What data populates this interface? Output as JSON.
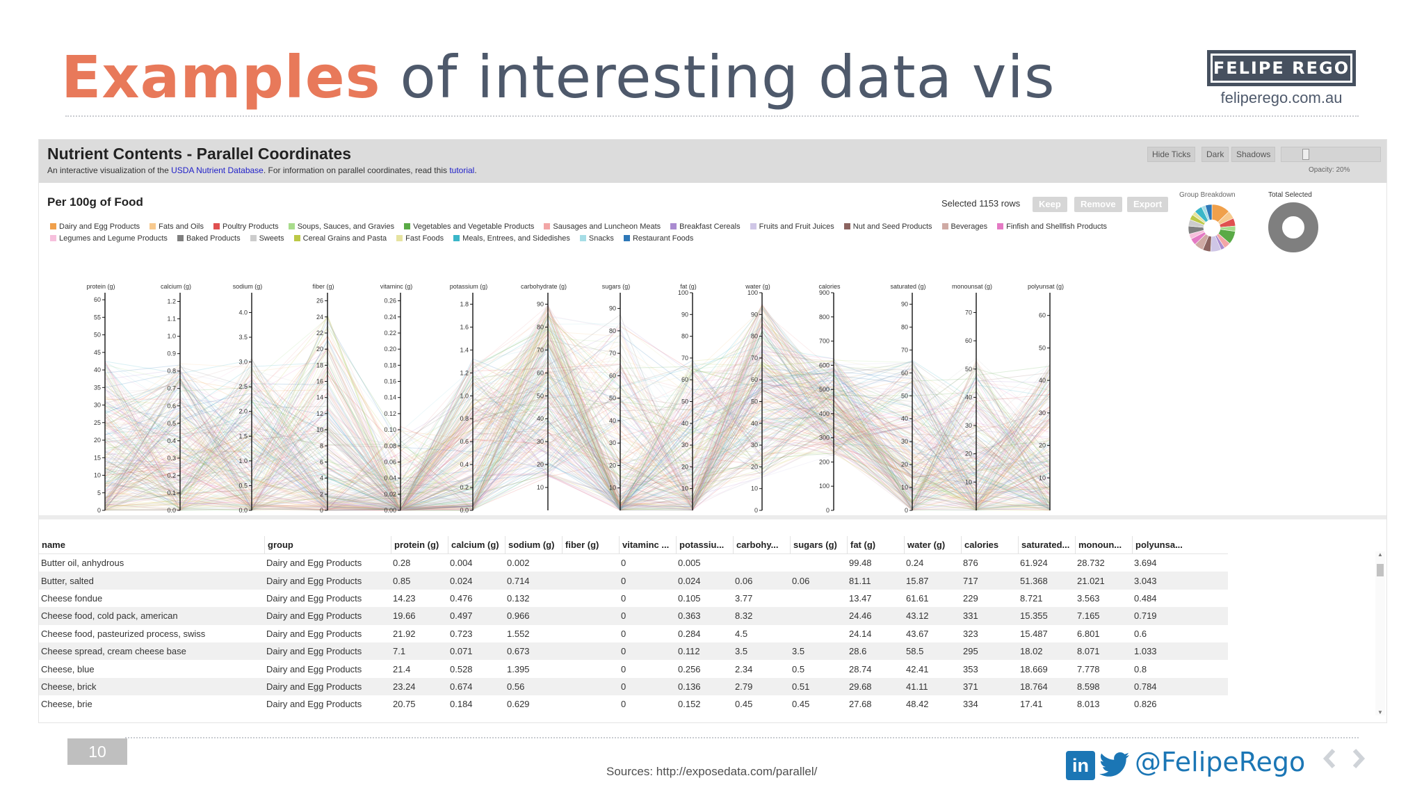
{
  "slide": {
    "title_accent": "Examples",
    "title_rest": " of interesting data vis",
    "brand": "FELIPE REGO",
    "brand_url": "feliperego.com.au",
    "page_number": "10",
    "sources": "Sources: http://exposedata.com/parallel/",
    "handle": "@FelipeRego",
    "linkedin_text": "in"
  },
  "app": {
    "title": "Nutrient Contents - Parallel Coordinates",
    "subtitle_pre": "An interactive visualization of the ",
    "subtitle_link1": "USDA Nutrient Database",
    "subtitle_mid": ". For information on parallel coordinates, read this ",
    "subtitle_link2": "tutorial",
    "subtitle_end": ".",
    "header_buttons": [
      "Hide Ticks",
      "Dark",
      "Shadows"
    ],
    "opacity_label": "Opacity: 20%",
    "opacity_value": 0.2,
    "per_title": "Per 100g of Food",
    "selected_text": "Selected 1153 rows",
    "actions": [
      "Keep",
      "Remove",
      "Export"
    ],
    "group_breakdown_label": "Group Breakdown",
    "total_selected_label": "Total Selected"
  },
  "legend": [
    {
      "label": "Dairy and Egg Products",
      "color": "#f0a04b"
    },
    {
      "label": "Fats and Oils",
      "color": "#f7c98e"
    },
    {
      "label": "Poultry Products",
      "color": "#e05050"
    },
    {
      "label": "Soups, Sauces, and Gravies",
      "color": "#a8dc8c"
    },
    {
      "label": "Vegetables and Vegetable Products",
      "color": "#5aaa46"
    },
    {
      "label": "Sausages and Luncheon Meats",
      "color": "#f2a6a6"
    },
    {
      "label": "Breakfast Cereals",
      "color": "#a98bd0"
    },
    {
      "label": "Fruits and Fruit Juices",
      "color": "#cfc6e6"
    },
    {
      "label": "Nut and Seed Products",
      "color": "#8c6460"
    },
    {
      "label": "Beverages",
      "color": "#cfaaa4"
    },
    {
      "label": "Finfish and Shellfish Products",
      "color": "#e47ac4"
    },
    {
      "label": "Legumes and Legume Products",
      "color": "#f6c0dc"
    },
    {
      "label": "Baked Products",
      "color": "#7f7f7f"
    },
    {
      "label": "Sweets",
      "color": "#cccccc"
    },
    {
      "label": "Cereal Grains and Pasta",
      "color": "#bcc846"
    },
    {
      "label": "Fast Foods",
      "color": "#e6e3a0"
    },
    {
      "label": "Meals, Entrees, and Sidedishes",
      "color": "#3ab6c8"
    },
    {
      "label": "Snacks",
      "color": "#a6dde6"
    },
    {
      "label": "Restaurant Foods",
      "color": "#2e78b8"
    }
  ],
  "chart_data": {
    "type": "parallel-coordinates",
    "axes": [
      {
        "name": "protein (g)",
        "min": 0,
        "max": 62,
        "ticks": [
          0,
          5,
          10,
          15,
          20,
          25,
          30,
          35,
          40,
          45,
          50,
          55,
          60
        ]
      },
      {
        "name": "calcium (g)",
        "min": 0,
        "max": 1.25,
        "ticks": [
          "0.0",
          "0.1",
          "0.2",
          "0.3",
          "0.4",
          "0.5",
          "0.6",
          "0.7",
          "0.8",
          "0.9",
          "1.0",
          "1.1",
          "1.2"
        ]
      },
      {
        "name": "sodium (g)",
        "min": 0,
        "max": 4.4,
        "ticks": [
          "0.0",
          "0.5",
          "1.0",
          "1.5",
          "2.0",
          "2.5",
          "3.0",
          "3.5",
          "4.0"
        ]
      },
      {
        "name": "fiber (g)",
        "min": 0,
        "max": 27,
        "ticks": [
          0,
          2,
          4,
          6,
          8,
          10,
          12,
          14,
          16,
          18,
          20,
          22,
          24,
          26
        ]
      },
      {
        "name": "vitaminc (g)",
        "min": 0,
        "max": 0.27,
        "ticks": [
          "0.00",
          "0.02",
          "0.04",
          "0.06",
          "0.08",
          "0.10",
          "0.12",
          "0.14",
          "0.16",
          "0.18",
          "0.20",
          "0.22",
          "0.24",
          "0.26"
        ]
      },
      {
        "name": "potassium (g)",
        "min": 0,
        "max": 1.9,
        "ticks": [
          "0.0",
          "0.2",
          "0.4",
          "0.6",
          "0.8",
          "1.0",
          "1.2",
          "1.4",
          "1.6",
          "1.8"
        ]
      },
      {
        "name": "carbohydrate (g)",
        "min": 0,
        "max": 95,
        "ticks": [
          10,
          20,
          30,
          40,
          50,
          60,
          70,
          80,
          90
        ]
      },
      {
        "name": "sugars (g)",
        "min": 0,
        "max": 97,
        "ticks": [
          10,
          20,
          30,
          40,
          50,
          60,
          70,
          80,
          90
        ]
      },
      {
        "name": "fat (g)",
        "min": 0,
        "max": 100,
        "ticks": [
          10,
          20,
          30,
          40,
          50,
          60,
          70,
          80,
          90,
          100
        ]
      },
      {
        "name": "water (g)",
        "min": 0,
        "max": 100,
        "ticks": [
          0,
          10,
          20,
          30,
          40,
          50,
          60,
          70,
          80,
          90,
          100
        ]
      },
      {
        "name": "calories",
        "min": 0,
        "max": 900,
        "ticks": [
          0,
          100,
          200,
          300,
          400,
          500,
          600,
          700,
          800,
          900
        ]
      },
      {
        "name": "saturated (g)",
        "min": 0,
        "max": 95,
        "ticks": [
          0,
          10,
          20,
          30,
          40,
          50,
          60,
          70,
          80,
          90
        ]
      },
      {
        "name": "monounsat (g)",
        "min": 0,
        "max": 77,
        "ticks": [
          10,
          20,
          30,
          40,
          50,
          60,
          70
        ]
      },
      {
        "name": "polyunsat (g)",
        "min": 0,
        "max": 67,
        "ticks": [
          10,
          20,
          30,
          40,
          50,
          60
        ]
      }
    ],
    "selected_rows": 1153,
    "opacity": 0.2
  },
  "table": {
    "columns": [
      "name",
      "group",
      "protein (g)",
      "calcium (g)",
      "sodium (g)",
      "fiber (g)",
      "vitaminc ...",
      "potassiu...",
      "carbohy...",
      "sugars (g)",
      "fat (g)",
      "water (g)",
      "calories",
      "saturated...",
      "monoun...",
      "polyunsa..."
    ],
    "rows": [
      [
        "Butter oil, anhydrous",
        "Dairy and Egg Products",
        "0.28",
        "0.004",
        "0.002",
        "",
        "0",
        "0.005",
        "",
        "",
        "99.48",
        "0.24",
        "876",
        "61.924",
        "28.732",
        "3.694"
      ],
      [
        "Butter, salted",
        "Dairy and Egg Products",
        "0.85",
        "0.024",
        "0.714",
        "",
        "0",
        "0.024",
        "0.06",
        "0.06",
        "81.11",
        "15.87",
        "717",
        "51.368",
        "21.021",
        "3.043"
      ],
      [
        "Cheese fondue",
        "Dairy and Egg Products",
        "14.23",
        "0.476",
        "0.132",
        "",
        "0",
        "0.105",
        "3.77",
        "",
        "13.47",
        "61.61",
        "229",
        "8.721",
        "3.563",
        "0.484"
      ],
      [
        "Cheese food, cold pack, american",
        "Dairy and Egg Products",
        "19.66",
        "0.497",
        "0.966",
        "",
        "0",
        "0.363",
        "8.32",
        "",
        "24.46",
        "43.12",
        "331",
        "15.355",
        "7.165",
        "0.719"
      ],
      [
        "Cheese food, pasteurized process, swiss",
        "Dairy and Egg Products",
        "21.92",
        "0.723",
        "1.552",
        "",
        "0",
        "0.284",
        "4.5",
        "",
        "24.14",
        "43.67",
        "323",
        "15.487",
        "6.801",
        "0.6"
      ],
      [
        "Cheese spread, cream cheese base",
        "Dairy and Egg Products",
        "7.1",
        "0.071",
        "0.673",
        "",
        "0",
        "0.112",
        "3.5",
        "3.5",
        "28.6",
        "58.5",
        "295",
        "18.02",
        "8.071",
        "1.033"
      ],
      [
        "Cheese, blue",
        "Dairy and Egg Products",
        "21.4",
        "0.528",
        "1.395",
        "",
        "0",
        "0.256",
        "2.34",
        "0.5",
        "28.74",
        "42.41",
        "353",
        "18.669",
        "7.778",
        "0.8"
      ],
      [
        "Cheese, brick",
        "Dairy and Egg Products",
        "23.24",
        "0.674",
        "0.56",
        "",
        "0",
        "0.136",
        "2.79",
        "0.51",
        "29.68",
        "41.11",
        "371",
        "18.764",
        "8.598",
        "0.784"
      ],
      [
        "Cheese, brie",
        "Dairy and Egg Products",
        "20.75",
        "0.184",
        "0.629",
        "",
        "0",
        "0.152",
        "0.45",
        "0.45",
        "27.68",
        "48.42",
        "334",
        "17.41",
        "8.013",
        "0.826"
      ]
    ]
  }
}
